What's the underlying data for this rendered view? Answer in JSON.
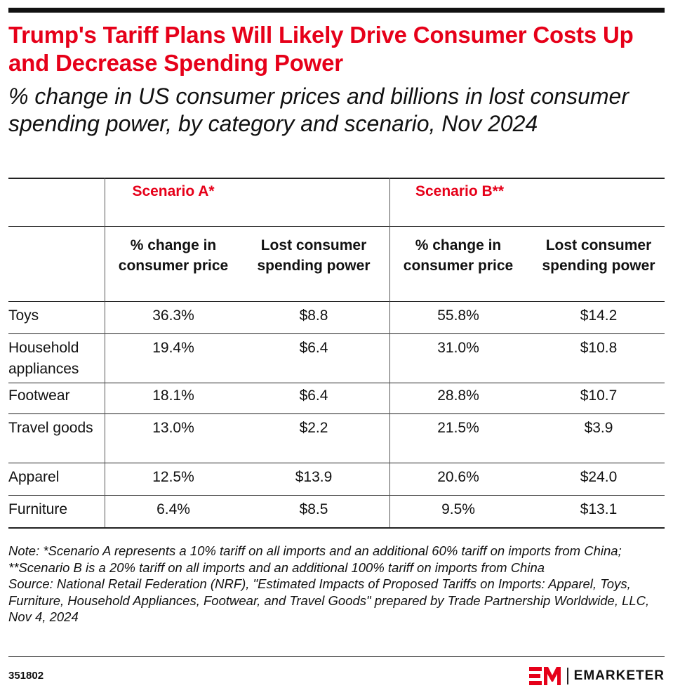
{
  "chart_data": {
    "type": "table",
    "title": "Trump's Tariff Plans Will Likely Drive Consumer Costs Up and Decrease Spending Power",
    "subtitle": "% change in US consumer prices and billions in lost consumer spending power, by category and scenario, Nov 2024",
    "scenario_groups": [
      "Scenario A*",
      "Scenario B**"
    ],
    "columns": [
      "% change in consumer price",
      "Lost consumer spending power",
      "% change in consumer price",
      "Lost consumer spending power"
    ],
    "rows": [
      {
        "label": "Toys",
        "values": [
          "36.3%",
          "$8.8",
          "55.8%",
          "$14.2"
        ]
      },
      {
        "label": "Household appliances",
        "values": [
          "19.4%",
          "$6.4",
          "31.0%",
          "$10.8"
        ]
      },
      {
        "label": "Footwear",
        "values": [
          "18.1%",
          "$6.4",
          "28.8%",
          "$10.7"
        ]
      },
      {
        "label": "Travel goods",
        "values": [
          "13.0%",
          "$2.2",
          "21.5%",
          "$3.9"
        ]
      },
      {
        "label": "Apparel",
        "values": [
          "12.5%",
          "$13.9",
          "20.6%",
          "$24.0"
        ]
      },
      {
        "label": "Furniture",
        "values": [
          "6.4%",
          "$8.5",
          "9.5%",
          "$13.1"
        ]
      }
    ]
  },
  "note": "Note: *Scenario A represents a 10% tariff on all imports and an additional 60% tariff on imports from China; **Scenario B is a 20% tariff on all imports and an additional 100% tariff on imports from China",
  "source": "Source: National Retail Federation (NRF), \"Estimated Impacts of Proposed Tariffs on Imports: Apparel, Toys, Furniture, Household Appliances, Footwear, and Travel Goods\" prepared by Trade Partnership Worldwide, LLC, Nov 4, 2024",
  "chart_id": "351802",
  "brand": {
    "name": "EMARKETER",
    "logo_icon": "em-logo-icon",
    "logo_color": "#e60019"
  },
  "colors": {
    "accent": "#e60019",
    "text": "#111111"
  }
}
